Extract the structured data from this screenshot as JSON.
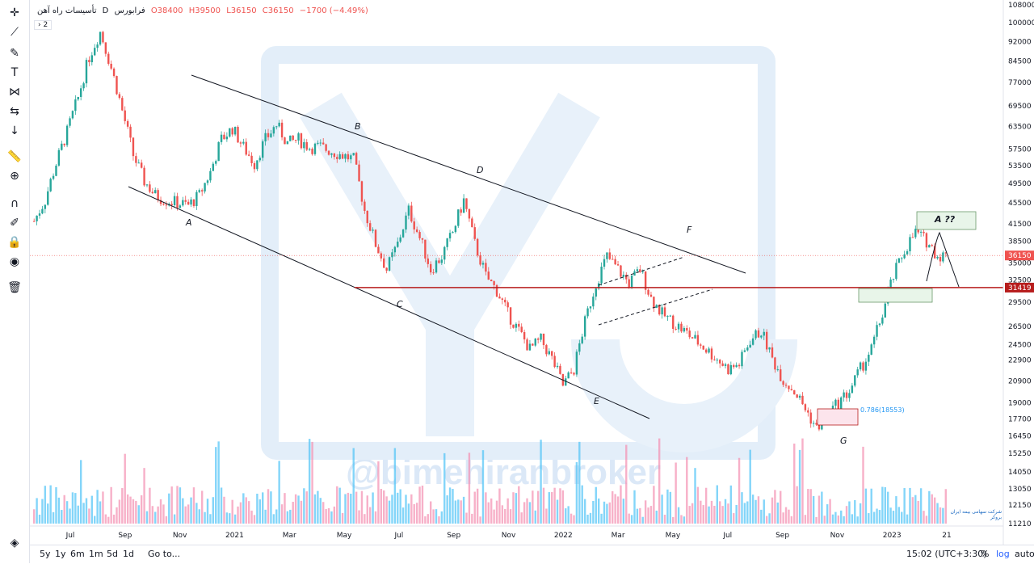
{
  "legend": {
    "symbol": "تأسیسات راه آهن",
    "interval": "D",
    "exchange": "فرابورس",
    "open": "O38400",
    "high": "H39500",
    "low": "L36150",
    "close": "C36150",
    "change": "−1700 (−4.49%)"
  },
  "collapse_label": "2",
  "timeframes": [
    "5y",
    "1y",
    "6m",
    "1m",
    "5d",
    "1d"
  ],
  "goto_label": "Go to...",
  "timezone": "15:02 (UTC+3:30)",
  "percent_label": "%",
  "log_label": "log",
  "auto_label": "auto",
  "watermark": "@bimehiranbroker",
  "logo_text": "شرکت سهامی بیمه ایران بروکر",
  "colors": {
    "up": "#26a69a",
    "down": "#ef5350",
    "volume_up": "#4fc3f7",
    "line": "#131722",
    "support": "#b71c1c"
  },
  "chart_data": {
    "type": "candlestick",
    "scale": "log",
    "ylim": [
      11210,
      108000
    ],
    "x_ticks": [
      "Jul",
      "Sep",
      "Nov",
      "2021",
      "Mar",
      "May",
      "Jul",
      "Sep",
      "Nov",
      "2022",
      "Mar",
      "May",
      "Jul",
      "Sep",
      "Nov",
      "2023",
      "21"
    ],
    "y_ticks": [
      108000,
      100000,
      92000,
      84500,
      77000,
      69500,
      63500,
      57500,
      53500,
      49500,
      45500,
      41500,
      38500,
      35000,
      32500,
      29500,
      26500,
      24500,
      22900,
      20900,
      19000,
      17700,
      16450,
      15250,
      14050,
      13050,
      12150,
      11210
    ],
    "price_labels": [
      {
        "value": 36150,
        "text": "36150"
      },
      {
        "value": 31419,
        "text": "31419"
      }
    ],
    "close_series": [
      42000,
      46000,
      54000,
      62000,
      72000,
      86000,
      96000,
      82000,
      68000,
      56000,
      50000,
      47000,
      46000,
      45500,
      45000,
      47000,
      52000,
      60000,
      63000,
      58000,
      54000,
      60000,
      64000,
      59000,
      60000,
      58000,
      58000,
      57000,
      56000,
      55000,
      44000,
      38000,
      34000,
      38000,
      44000,
      39000,
      34000,
      36000,
      40000,
      46000,
      38000,
      33000,
      31000,
      28000,
      26000,
      24000,
      25000,
      23000,
      20500,
      22000,
      27000,
      32000,
      36000,
      34000,
      32000,
      34000,
      30000,
      28000,
      27000,
      26000,
      25000,
      24000,
      23000,
      22000,
      22500,
      25000,
      26000,
      23000,
      21000,
      20000,
      18500,
      17000,
      18000,
      19000,
      20000,
      22000,
      24000,
      28000,
      33000,
      37000,
      40000,
      38500,
      36150
    ],
    "annotations": [
      "A",
      "B",
      "C",
      "D",
      "E",
      "F",
      "G",
      "A ??"
    ],
    "fib_label": "0.786(18553)"
  }
}
